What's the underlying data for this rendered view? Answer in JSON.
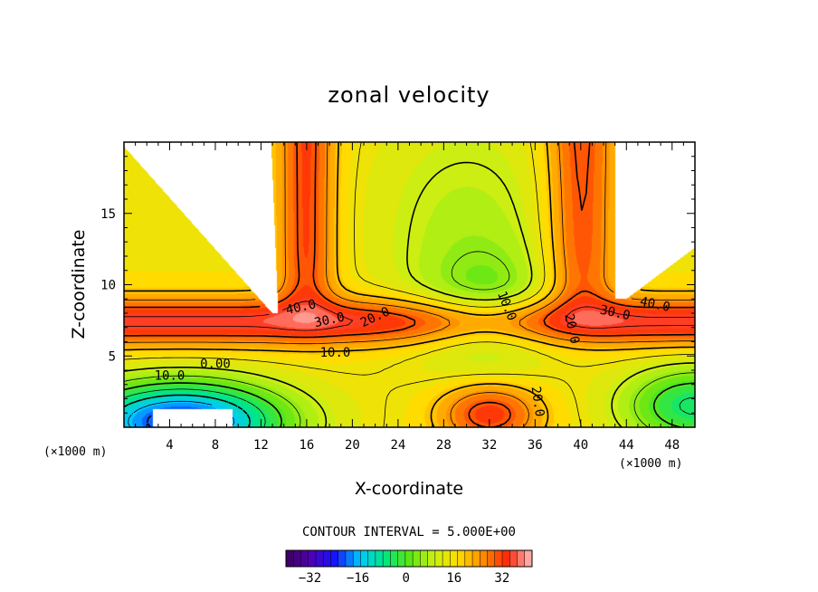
{
  "chart_data": {
    "type": "heatmap",
    "title": "zonal velocity",
    "xlabel": "X-coordinate",
    "ylabel": "Z-coordinate",
    "x_unit": "(×1000 m)",
    "x_unit_right": "(×1000 m)",
    "xlim": [
      0,
      50
    ],
    "ylim": [
      0,
      20
    ],
    "xticks": [
      4,
      8,
      12,
      16,
      20,
      24,
      28,
      32,
      36,
      40,
      44,
      48
    ],
    "yticks": [
      5,
      10,
      15
    ],
    "contour_interval_text": "CONTOUR INTERVAL = 5.000E+00",
    "colorbar": {
      "min": -40,
      "max": 42,
      "tick_values": [
        -32,
        -16,
        0,
        16,
        32
      ],
      "tick_labels": [
        "−32",
        "−16",
        "0",
        "16",
        "32"
      ]
    },
    "contour_labels": [
      {
        "text": "40.0",
        "x": 15.5,
        "y": 8.4,
        "rot": -12
      },
      {
        "text": "30.0",
        "x": 18.0,
        "y": 7.5,
        "rot": -12
      },
      {
        "text": "20.0",
        "x": 22.0,
        "y": 7.7,
        "rot": -25
      },
      {
        "text": "10.0",
        "x": 18.5,
        "y": 5.2,
        "rot": 0
      },
      {
        "text": "0.00",
        "x": 8.0,
        "y": 4.4,
        "rot": 0
      },
      {
        "text": "10.0",
        "x": 4.0,
        "y": 3.6,
        "rot": 0
      },
      {
        "text": "10.0",
        "x": 33.5,
        "y": 8.5,
        "rot": 68
      },
      {
        "text": "20.0",
        "x": 39.2,
        "y": 6.9,
        "rot": 78
      },
      {
        "text": "20.0",
        "x": 36.2,
        "y": 1.8,
        "rot": 82
      },
      {
        "text": "30.0",
        "x": 43.0,
        "y": 8.0,
        "rot": 12
      },
      {
        "text": "40.0",
        "x": 46.5,
        "y": 8.6,
        "rot": 12
      }
    ],
    "colors": {
      "undefined_region": "#ffffff",
      "contour_line": "#000000"
    }
  }
}
